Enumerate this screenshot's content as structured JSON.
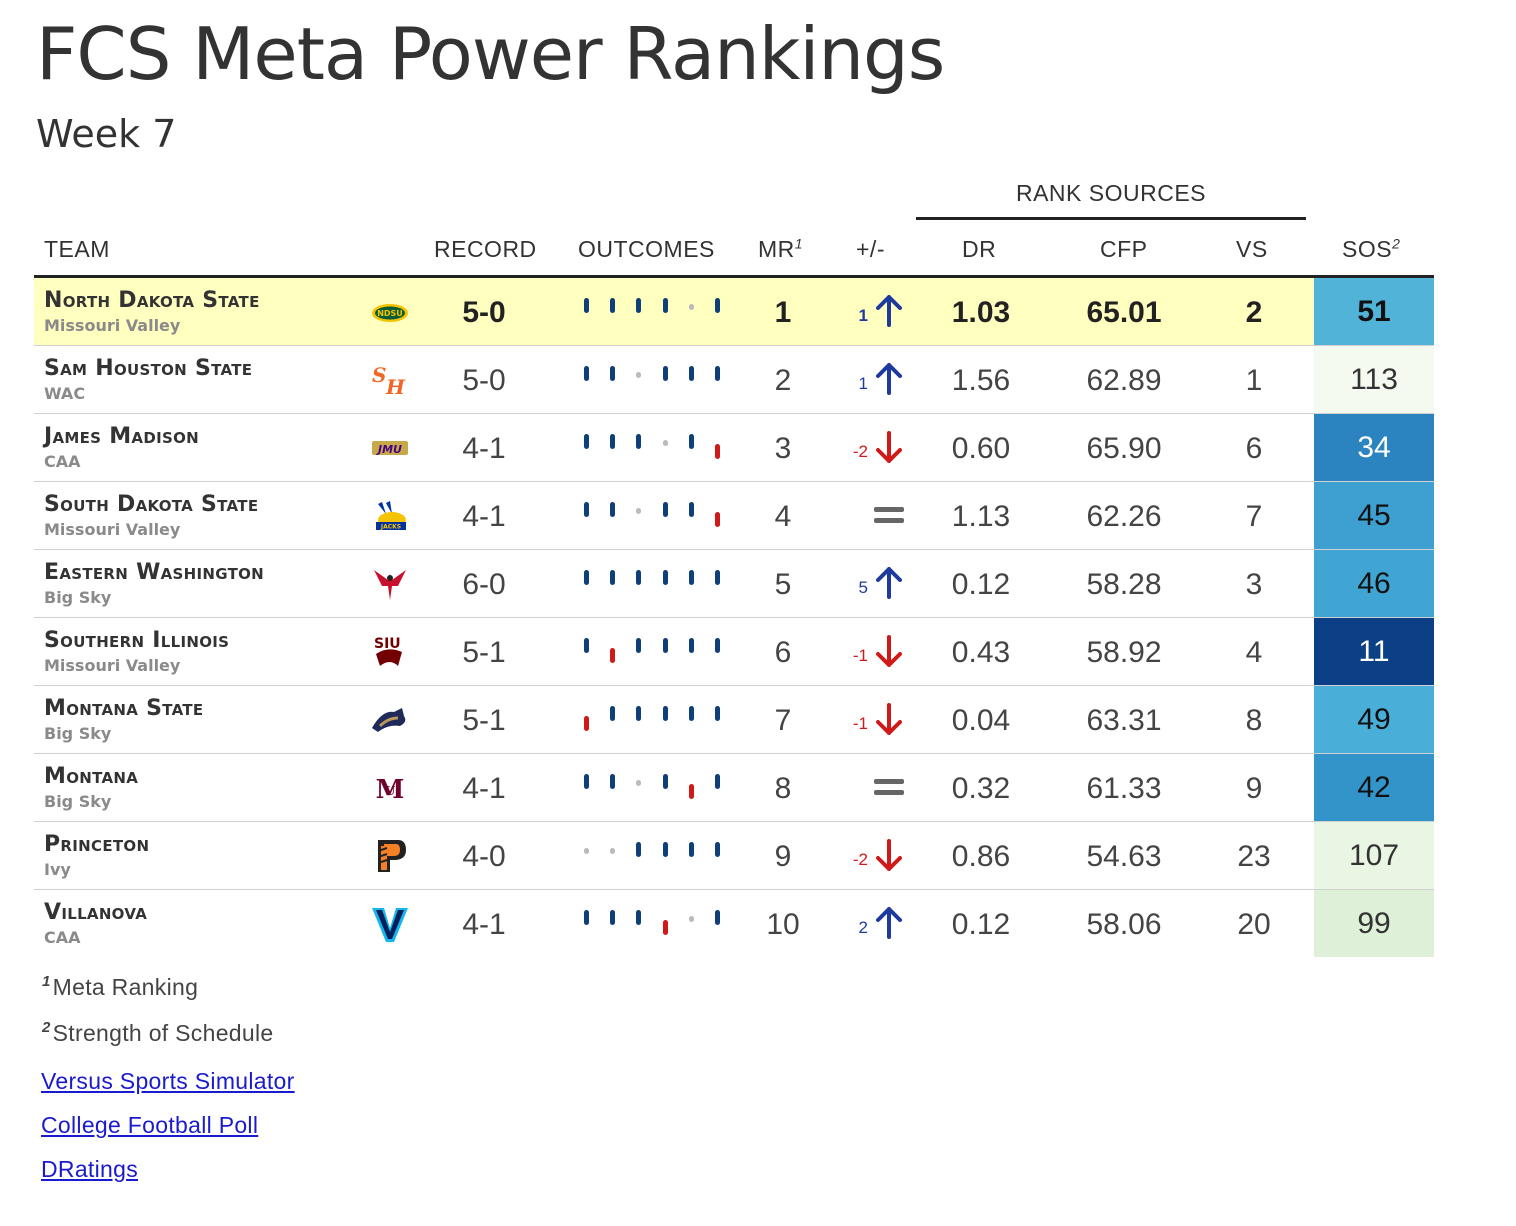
{
  "header": {
    "title": "FCS Meta Power Rankings",
    "subtitle": "Week 7",
    "rank_sources_label": "RANK SOURCES"
  },
  "columns": {
    "team": "TEAM",
    "record": "RECORD",
    "outcomes": "OUTCOMES",
    "mr": "MR",
    "mr_sup": "1",
    "change": "+/-",
    "dr": "DR",
    "cfp": "CFP",
    "vs": "VS",
    "sos": "SOS",
    "sos_sup": "2"
  },
  "colors": {
    "win": "#0e3f77",
    "loss": "#d01a1a",
    "none": "#bbbbbb",
    "up": "#1d3a9c",
    "down": "#d01a1a",
    "highlight": "#ffffc0"
  },
  "rows": [
    {
      "name": "North Dakota State",
      "conf": "Missouri Valley",
      "logo": "ndsu-bison-logo",
      "record": "5-0",
      "outcomes": [
        "W",
        "W",
        "W",
        "W",
        "N",
        "W"
      ],
      "mr": "1",
      "change": "1",
      "dir": "up",
      "dr": "1.03",
      "cfp": "65.01",
      "vs": "2",
      "sos": "51",
      "sos_bg": "#52b3d9",
      "sos_fg": "#111111",
      "highlight": true
    },
    {
      "name": "Sam Houston State",
      "conf": "WAC",
      "logo": "sam-houston-logo",
      "record": "5-0",
      "outcomes": [
        "W",
        "W",
        "N",
        "W",
        "W",
        "W"
      ],
      "mr": "2",
      "change": "1",
      "dir": "up",
      "dr": "1.56",
      "cfp": "62.89",
      "vs": "1",
      "sos": "113",
      "sos_bg": "#f5faf0",
      "sos_fg": "#333333",
      "highlight": false
    },
    {
      "name": "James Madison",
      "conf": "CAA",
      "logo": "jmu-logo",
      "record": "4-1",
      "outcomes": [
        "W",
        "W",
        "W",
        "N",
        "W",
        "L"
      ],
      "mr": "3",
      "change": "-2",
      "dir": "down",
      "dr": "0.60",
      "cfp": "65.90",
      "vs": "6",
      "sos": "34",
      "sos_bg": "#2b84bf",
      "sos_fg": "#ffffff",
      "highlight": false
    },
    {
      "name": "South Dakota State",
      "conf": "Missouri Valley",
      "logo": "sdsu-jackrabbits-logo",
      "record": "4-1",
      "outcomes": [
        "W",
        "W",
        "N",
        "W",
        "W",
        "L"
      ],
      "mr": "4",
      "change": "",
      "dir": "same",
      "dr": "1.13",
      "cfp": "62.26",
      "vs": "7",
      "sos": "45",
      "sos_bg": "#3da0d0",
      "sos_fg": "#111111",
      "highlight": false
    },
    {
      "name": "Eastern Washington",
      "conf": "Big Sky",
      "logo": "ewu-eagle-logo",
      "record": "6-0",
      "outcomes": [
        "W",
        "W",
        "W",
        "W",
        "W",
        "W"
      ],
      "mr": "5",
      "change": "5",
      "dir": "up",
      "dr": "0.12",
      "cfp": "58.28",
      "vs": "3",
      "sos": "46",
      "sos_bg": "#41a5d3",
      "sos_fg": "#111111",
      "highlight": false
    },
    {
      "name": "Southern Illinois",
      "conf": "Missouri Valley",
      "logo": "siu-saluki-logo",
      "record": "5-1",
      "outcomes": [
        "W",
        "L",
        "W",
        "W",
        "W",
        "W"
      ],
      "mr": "6",
      "change": "-1",
      "dir": "down",
      "dr": "0.43",
      "cfp": "58.92",
      "vs": "4",
      "sos": "11",
      "sos_bg": "#0b3f86",
      "sos_fg": "#ffffff",
      "highlight": false
    },
    {
      "name": "Montana State",
      "conf": "Big Sky",
      "logo": "montana-state-bobcat-logo",
      "record": "5-1",
      "outcomes": [
        "L",
        "W",
        "W",
        "W",
        "W",
        "W"
      ],
      "mr": "7",
      "change": "-1",
      "dir": "down",
      "dr": "0.04",
      "cfp": "63.31",
      "vs": "8",
      "sos": "49",
      "sos_bg": "#4aafd8",
      "sos_fg": "#111111",
      "highlight": false
    },
    {
      "name": "Montana",
      "conf": "Big Sky",
      "logo": "montana-um-logo",
      "record": "4-1",
      "outcomes": [
        "W",
        "W",
        "N",
        "W",
        "L",
        "W"
      ],
      "mr": "8",
      "change": "",
      "dir": "same",
      "dr": "0.32",
      "cfp": "61.33",
      "vs": "9",
      "sos": "42",
      "sos_bg": "#3394c9",
      "sos_fg": "#111111",
      "highlight": false
    },
    {
      "name": "Princeton",
      "conf": "Ivy",
      "logo": "princeton-p-logo",
      "record": "4-0",
      "outcomes": [
        "N",
        "N",
        "W",
        "W",
        "W",
        "W"
      ],
      "mr": "9",
      "change": "-2",
      "dir": "down",
      "dr": "0.86",
      "cfp": "54.63",
      "vs": "23",
      "sos": "107",
      "sos_bg": "#eaf6e4",
      "sos_fg": "#333333",
      "highlight": false
    },
    {
      "name": "Villanova",
      "conf": "CAA",
      "logo": "villanova-v-logo",
      "record": "4-1",
      "outcomes": [
        "W",
        "W",
        "W",
        "L",
        "N",
        "W"
      ],
      "mr": "10",
      "change": "2",
      "dir": "up",
      "dr": "0.12",
      "cfp": "58.06",
      "vs": "20",
      "sos": "99",
      "sos_bg": "#dff0d8",
      "sos_fg": "#333333",
      "highlight": false
    }
  ],
  "footnotes": [
    {
      "sup": "1",
      "text": "Meta Ranking"
    },
    {
      "sup": "2",
      "text": "Strength of Schedule"
    }
  ],
  "links": [
    {
      "label": "Versus Sports Simulator"
    },
    {
      "label": "College Football Poll"
    },
    {
      "label": "DRatings"
    }
  ]
}
